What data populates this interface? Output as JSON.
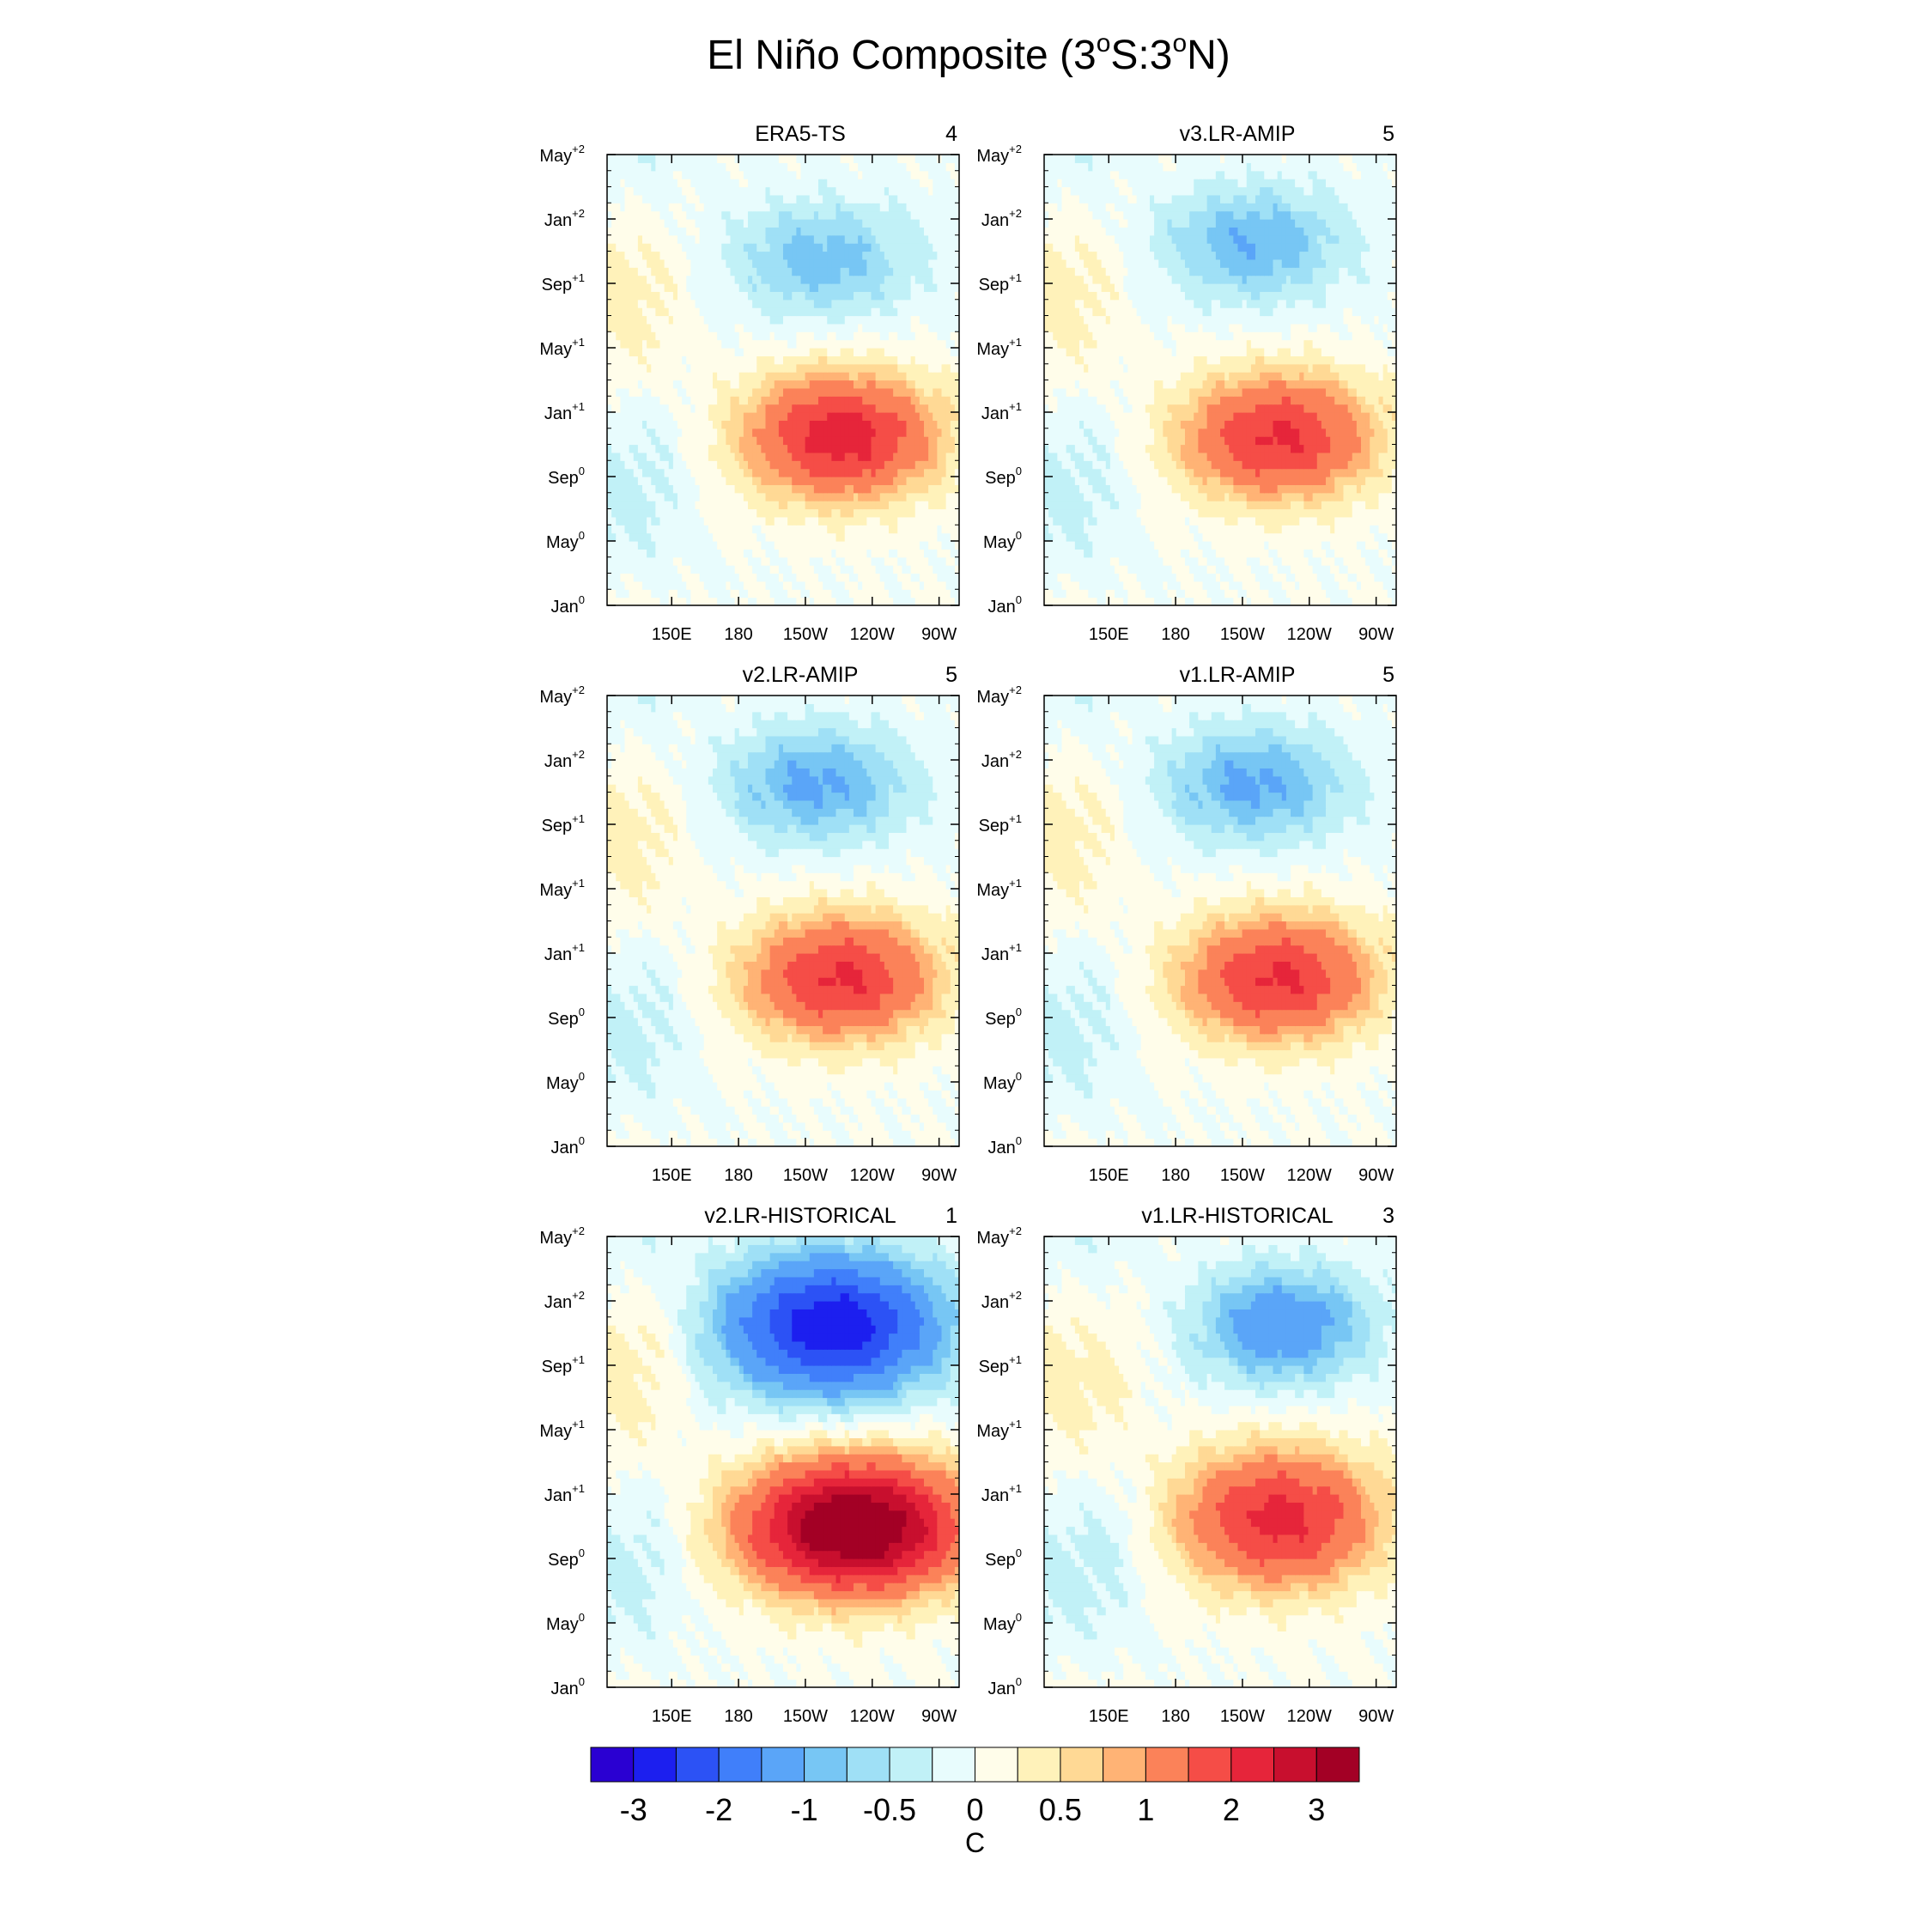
{
  "figure": {
    "title_main": "El Niño Composite (3",
    "title_deg1": "o",
    "title_mid": "S:3",
    "title_deg2": "o",
    "title_end": "N)"
  },
  "chart_data": {
    "type": "heatmap",
    "title": "El Niño Composite (3°S:3°N)",
    "x_ticks": [
      {
        "label": "150E",
        "lon": 150
      },
      {
        "label": "180",
        "lon": 180
      },
      {
        "label": "150W",
        "lon": 210
      },
      {
        "label": "120W",
        "lon": 240
      },
      {
        "label": "90W",
        "lon": 270
      }
    ],
    "xlim": [
      121,
      279
    ],
    "y_ticks": [
      {
        "month": "Jan",
        "sup": "0",
        "index": 0
      },
      {
        "month": "May",
        "sup": "0",
        "index": 4
      },
      {
        "month": "Sep",
        "sup": "0",
        "index": 8
      },
      {
        "month": "Jan",
        "sup": "+1",
        "index": 12
      },
      {
        "month": "May",
        "sup": "+1",
        "index": 16
      },
      {
        "month": "Sep",
        "sup": "+1",
        "index": 20
      },
      {
        "month": "Jan",
        "sup": "+2",
        "index": 24
      },
      {
        "month": "May",
        "sup": "+2",
        "index": 28
      }
    ],
    "ylim": [
      0,
      28
    ],
    "panels": [
      {
        "name": "ERA5-TS",
        "count": "4",
        "ocean_west": 153,
        "east_edge": 275,
        "warm": {
          "lon": 226,
          "month": 10.5,
          "amp": 2.3,
          "sx": 42,
          "sy": 3.8
        },
        "cold": {
          "lon": 218,
          "month": 21.5,
          "amp": -0.9,
          "sx": 42,
          "sy": 3.6
        }
      },
      {
        "name": "v3.LR-AMIP",
        "count": "5",
        "ocean_west": 153,
        "east_edge": 275,
        "warm": {
          "lon": 226,
          "month": 10.5,
          "amp": 2.1,
          "sx": 42,
          "sy": 3.8
        },
        "cold": {
          "lon": 215,
          "month": 22.5,
          "amp": -1.0,
          "sx": 42,
          "sy": 3.6
        }
      },
      {
        "name": "v2.LR-AMIP",
        "count": "5",
        "ocean_west": 153,
        "east_edge": 275,
        "warm": {
          "lon": 226,
          "month": 10.5,
          "amp": 2.1,
          "sx": 42,
          "sy": 3.8
        },
        "cold": {
          "lon": 215,
          "month": 22.5,
          "amp": -1.1,
          "sx": 42,
          "sy": 3.6
        }
      },
      {
        "name": "v1.LR-AMIP",
        "count": "5",
        "ocean_west": 153,
        "east_edge": 275,
        "warm": {
          "lon": 226,
          "month": 10.5,
          "amp": 2.1,
          "sx": 42,
          "sy": 3.8
        },
        "cold": {
          "lon": 215,
          "month": 22.5,
          "amp": -1.1,
          "sx": 42,
          "sy": 3.6
        }
      },
      {
        "name": "v2.LR-HISTORICAL",
        "count": "1",
        "ocean_west": 150,
        "east_edge": 275,
        "warm": {
          "lon": 232,
          "month": 10.0,
          "amp": 3.8,
          "sx": 48,
          "sy": 4.0
        },
        "cold": {
          "lon": 222,
          "month": 22.5,
          "amp": -2.9,
          "sx": 48,
          "sy": 4.2
        }
      },
      {
        "name": "v1.LR-HISTORICAL",
        "count": "3",
        "ocean_west": 160,
        "east_edge": 275,
        "warm": {
          "lon": 226,
          "month": 10.5,
          "amp": 2.2,
          "sx": 44,
          "sy": 4.2
        },
        "cold": {
          "lon": 228,
          "month": 22.5,
          "amp": -1.4,
          "sx": 38,
          "sy": 3.6
        }
      }
    ],
    "colorbar": {
      "colors": [
        "#2a00d2",
        "#1c1fef",
        "#2c52f5",
        "#407ffa",
        "#5aa5f8",
        "#77c6f4",
        "#9fe0f6",
        "#c1f1f7",
        "#e8fcfd",
        "#fffdea",
        "#fff2ba",
        "#ffd995",
        "#ffb375",
        "#fb8259",
        "#f54d47",
        "#e6253a",
        "#c80f2e",
        "#a30025"
      ],
      "boundaries": [
        -3.5,
        -3,
        -2.5,
        -2,
        -1.5,
        -1,
        -0.75,
        -0.5,
        -0.25,
        0,
        0.25,
        0.5,
        0.75,
        1,
        1.5,
        2,
        2.5,
        3,
        3.5
      ],
      "labels": [
        "-3",
        "-2",
        "-1",
        "-0.5",
        "0",
        "0.5",
        "1",
        "2",
        "3"
      ],
      "unit": "C"
    }
  }
}
